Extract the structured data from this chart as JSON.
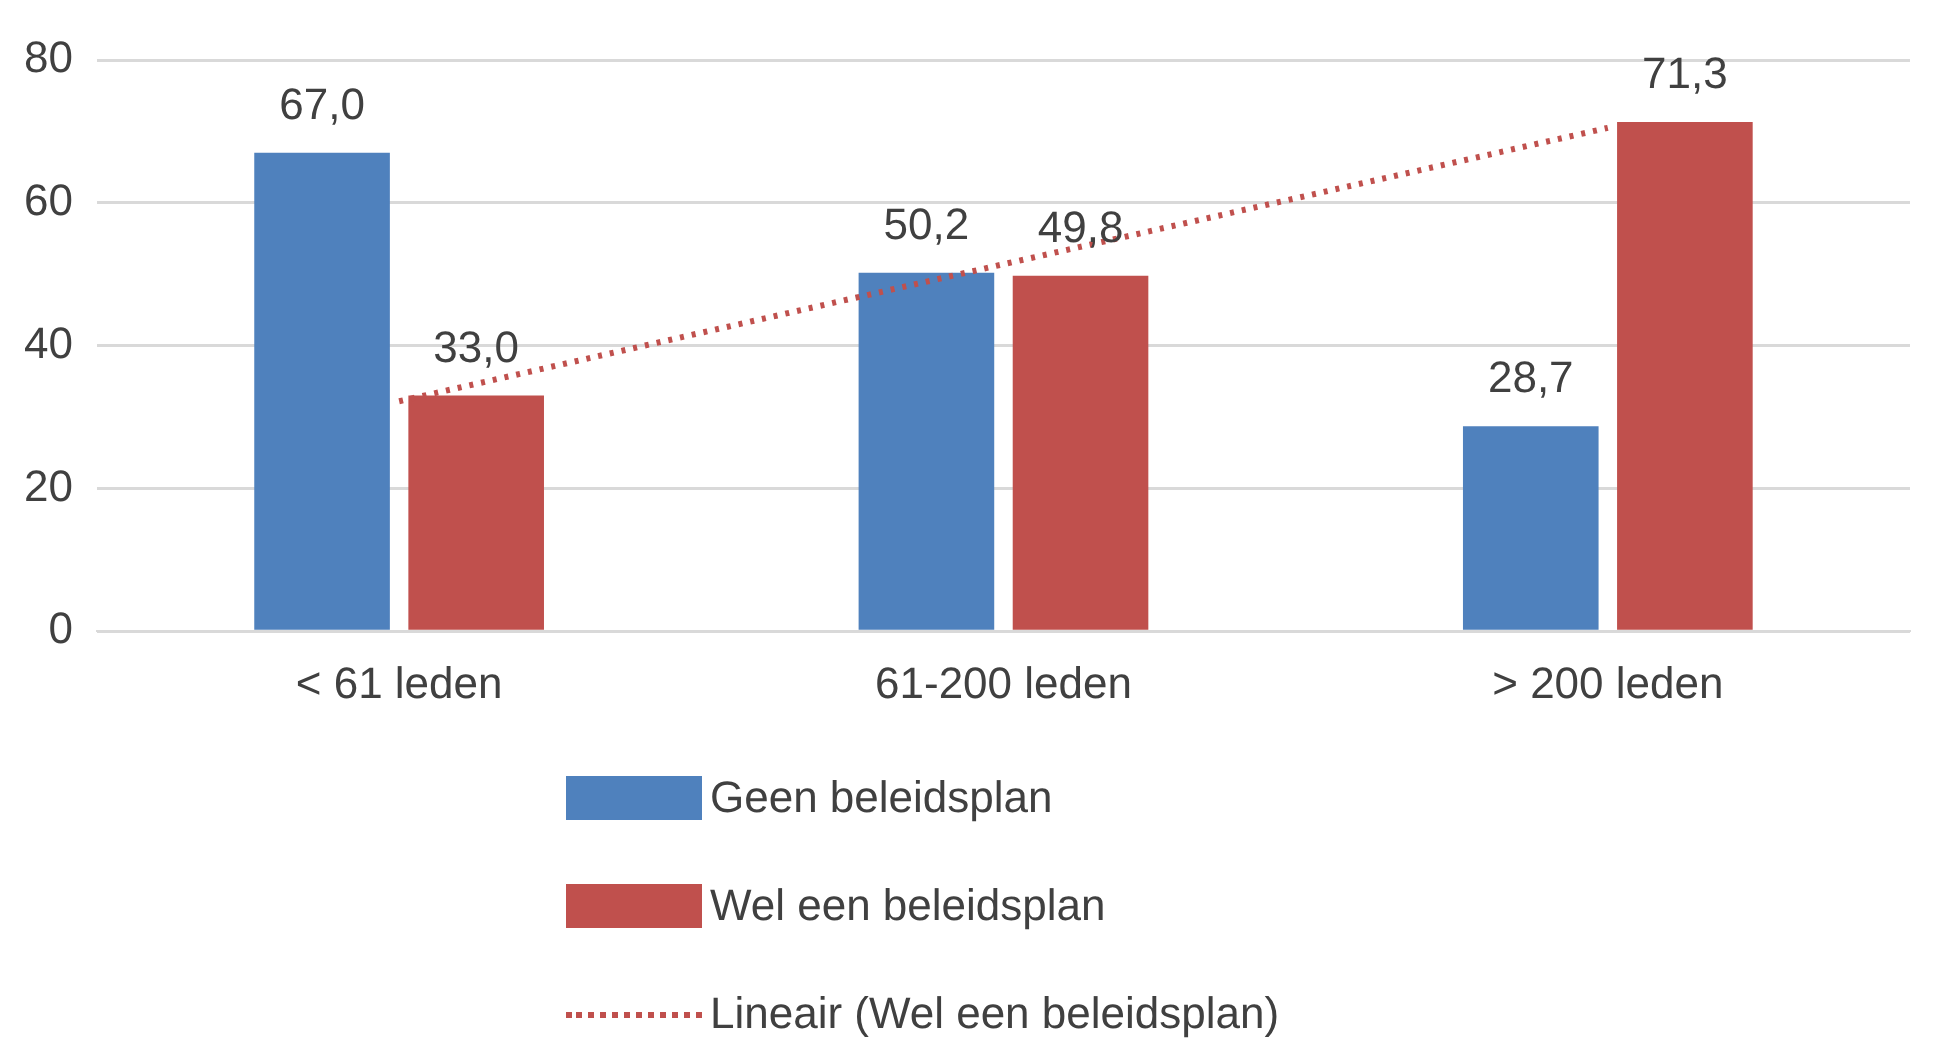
{
  "chart_data": {
    "type": "bar",
    "categories": [
      "< 61 leden",
      "61-200 leden",
      "> 200 leden"
    ],
    "series": [
      {
        "name": "Geen beleidsplan",
        "color": "#4f81bd",
        "values": [
          67.0,
          50.2,
          28.7
        ],
        "value_labels": [
          "67,0",
          "50,2",
          "28,7"
        ]
      },
      {
        "name": "Wel een beleidsplan",
        "color": "#c0504d",
        "values": [
          33.0,
          49.8,
          71.3
        ],
        "value_labels": [
          "33,0",
          "49,8",
          "71,3"
        ]
      },
      {
        "name": "Lineair (Wel een beleidsplan)",
        "type": "line",
        "color": "#c0504d",
        "line_style": "dotted",
        "marker": "none",
        "values": [
          32.2,
          51.4,
          70.5
        ]
      }
    ],
    "ylim": [
      0,
      80
    ],
    "yticks": [
      0,
      20,
      40,
      60,
      80
    ],
    "grid": "y",
    "legend": "bottom"
  }
}
